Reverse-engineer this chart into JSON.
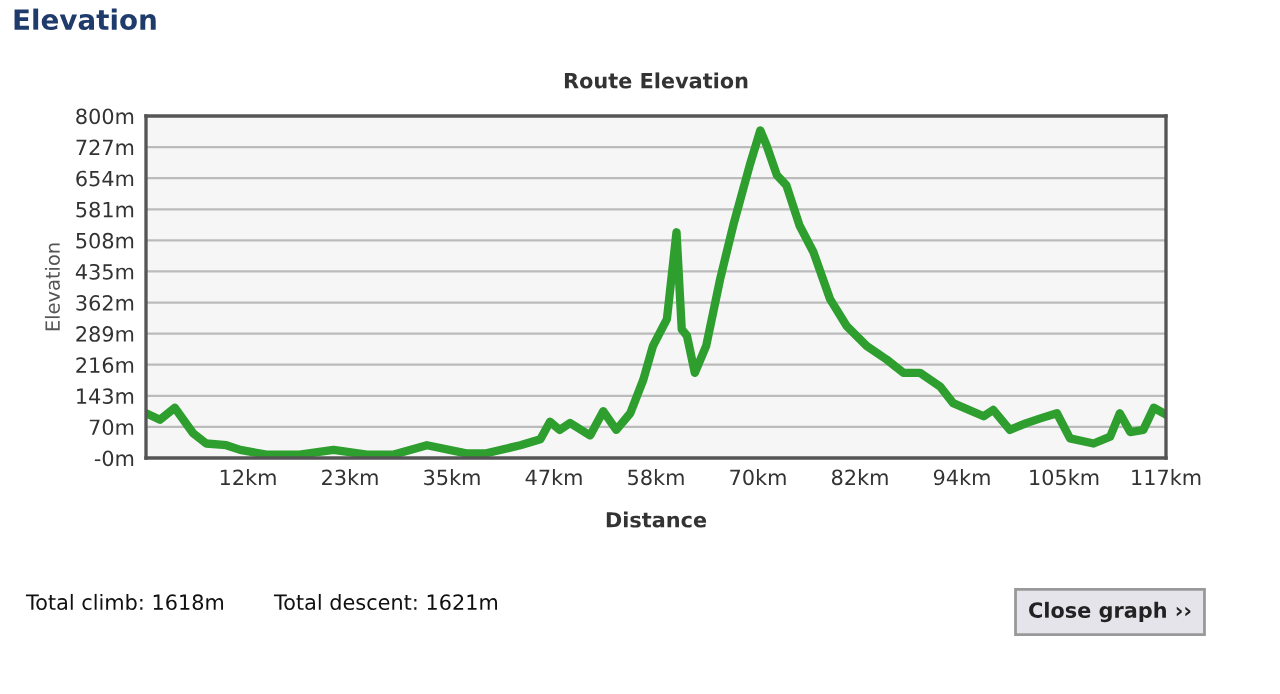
{
  "chart_data": {
    "type": "line",
    "title": "Route Elevation",
    "xlabel": "Distance",
    "ylabel": "Elevation",
    "annotations": [
      "Elevation",
      "Total climb: 1618m",
      "Total descent: 1621m",
      "Close graph ››"
    ],
    "series": [
      {
        "color": "#2e9e2e",
        "x": [
          0,
          1.6,
          3.3,
          5.4,
          6.9,
          9.2,
          10.8,
          13.8,
          17.6,
          21.5,
          25.3,
          28.4,
          32.2,
          36.7,
          39.0,
          42.9,
          45.2,
          46.3,
          47.4,
          48.6,
          50.9,
          52.4,
          53.9,
          55.5,
          57.0,
          58.1,
          59.7,
          60.8,
          61.4,
          62.0,
          62.9,
          64.2,
          65.8,
          67.3,
          69.2,
          70.4,
          71.1,
          72.3,
          73.4,
          74.9,
          76.5,
          78.4,
          80.3,
          82.6,
          84.9,
          86.8,
          88.7,
          91.0,
          92.5,
          96.0,
          97.1,
          99.0,
          100.9,
          102.5,
          104.4,
          105.9,
          108.6,
          110.5,
          111.6,
          112.8,
          114.3,
          115.5,
          116.9
        ],
        "values": [
          102,
          87,
          115,
          55,
          31,
          27,
          16,
          5,
          5,
          16,
          5,
          5,
          27,
          8,
          8,
          27,
          41,
          82,
          63,
          79,
          50,
          107,
          63,
          102,
          181,
          260,
          323,
          527,
          299,
          284,
          197,
          260,
          417,
          543,
          685,
          766,
          732,
          661,
          637,
          543,
          480,
          370,
          307,
          260,
          228,
          197,
          197,
          165,
          126,
          95,
          110,
          63,
          79,
          90,
          102,
          43,
          31,
          47,
          102,
          58,
          63,
          115,
          99
        ]
      }
    ],
    "xlim": [
      0,
      116.9
    ],
    "xticks": [
      {
        "value": 11.69,
        "label": "12km"
      },
      {
        "value": 23.38,
        "label": "23km"
      },
      {
        "value": 35.07,
        "label": "35km"
      },
      {
        "value": 46.76,
        "label": "47km"
      },
      {
        "value": 58.45,
        "label": "58km"
      },
      {
        "value": 70.14,
        "label": "70km"
      },
      {
        "value": 81.83,
        "label": "82km"
      },
      {
        "value": 93.52,
        "label": "94km"
      },
      {
        "value": 105.21,
        "label": "105km"
      },
      {
        "value": 116.9,
        "label": "117km"
      }
    ],
    "ylim": [
      -3,
      800
    ],
    "yticks": [
      {
        "value": -3,
        "label": "-0m"
      },
      {
        "value": 70,
        "label": "70m"
      },
      {
        "value": 143,
        "label": "143m"
      },
      {
        "value": 216,
        "label": "216m"
      },
      {
        "value": 289,
        "label": "289m"
      },
      {
        "value": 362,
        "label": "362m"
      },
      {
        "value": 435,
        "label": "435m"
      },
      {
        "value": 508,
        "label": "508m"
      },
      {
        "value": 581,
        "label": "581m"
      },
      {
        "value": 654,
        "label": "654m"
      },
      {
        "value": 727,
        "label": "727m"
      },
      {
        "value": 800,
        "label": "800m"
      }
    ],
    "grid": "y",
    "legend": false,
    "marker": "none",
    "line_style": "solid"
  }
}
